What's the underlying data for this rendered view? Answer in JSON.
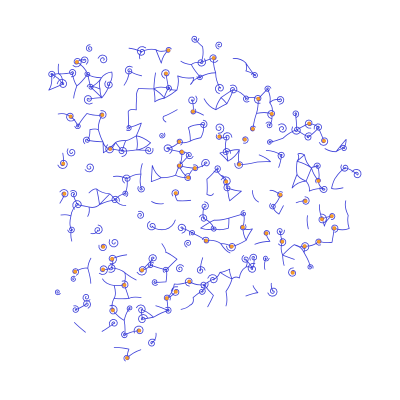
{
  "artwork": {
    "subject": "spiral-network-pattern",
    "background_color": "#ffffff",
    "stroke_color": "#3b3fd8",
    "dot_color": "#e07a3a",
    "dot_fill": "#f5a623",
    "density_level": 0.85
  }
}
